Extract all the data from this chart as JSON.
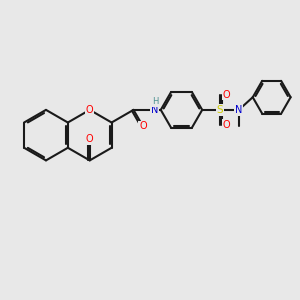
{
  "bg_color": "#e8e8e8",
  "bond_color": "#1a1a1a",
  "bond_width": 1.5,
  "dbo": 0.06,
  "atom_colors": {
    "O": "#ff0000",
    "N": "#0000cd",
    "S": "#cccc00",
    "H": "#4a8f8f",
    "C": "#1a1a1a"
  },
  "font_size": 7.0,
  "fig_size": [
    3.0,
    3.0
  ],
  "dpi": 100
}
